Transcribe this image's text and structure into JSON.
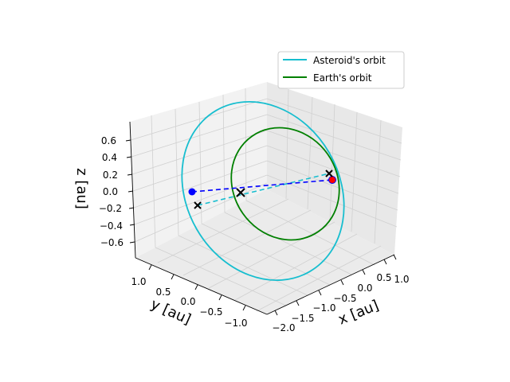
{
  "chart_data": {
    "type": "line",
    "projection": "3d",
    "xlabel": "x [au]",
    "ylabel": "y [au]",
    "zlabel": "z [au]",
    "x_ticks": [
      "−2.0",
      "−1.5",
      "−1.0",
      "−0.5",
      "0.0",
      "0.5",
      "1.0"
    ],
    "y_ticks": [
      "1.0",
      "0.5",
      "0.0",
      "−0.5",
      "−1.0"
    ],
    "z_ticks": [
      "0.6",
      "0.4",
      "0.2",
      "0.0",
      "−0.2",
      "−0.4",
      "−0.6"
    ],
    "grid": true,
    "legend": {
      "placement": "top-right"
    },
    "series": [
      {
        "name": "Asteroid's orbit",
        "color": "#17becf",
        "style": "solid"
      },
      {
        "name": "Earth's orbit",
        "color": "#008000",
        "style": "solid"
      }
    ],
    "markers": [
      {
        "label": "asteroid-position",
        "color": "#0000ff",
        "symbol": "circle"
      },
      {
        "label": "earth-position",
        "color": "#ff0000",
        "symbol": "circle"
      },
      {
        "label": "center-cross",
        "color": "#000000",
        "symbol": "x"
      }
    ]
  }
}
